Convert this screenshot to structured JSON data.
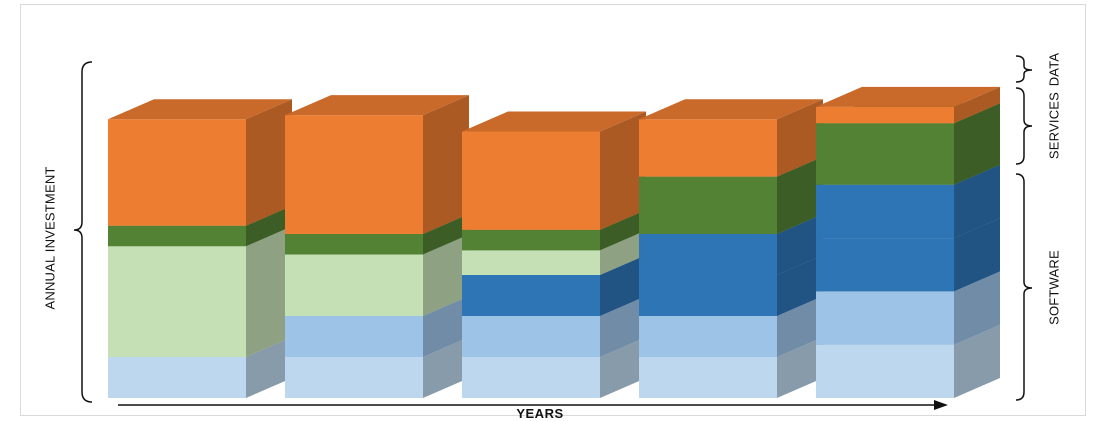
{
  "labels": {
    "y_axis": "ANNUAL INVESTMENT",
    "x_axis": "YEARS",
    "data": "DATA",
    "services": "SERVICES",
    "software": "SOFTWARE"
  },
  "colors": {
    "data": "#ed7d31",
    "services": "#548235",
    "services_legacy": "#c5e0b4",
    "software_dark": "#2e75b6",
    "software_mid": "#9dc3e6",
    "software_light": "#bdd7ee",
    "border": "#d9d9d9",
    "ink": "#111111"
  },
  "columns": [
    {
      "layers": [
        {
          "kind": "software_light",
          "size": 1
        },
        {
          "kind": "services_legacy",
          "size": 2.7
        },
        {
          "kind": "services",
          "size": 0.5
        },
        {
          "kind": "data",
          "size": 2.6
        }
      ]
    },
    {
      "layers": [
        {
          "kind": "software_light",
          "size": 1
        },
        {
          "kind": "software_mid",
          "size": 1
        },
        {
          "kind": "services_legacy",
          "size": 1.5
        },
        {
          "kind": "services",
          "size": 0.5
        },
        {
          "kind": "data",
          "size": 2.9
        }
      ]
    },
    {
      "layers": [
        {
          "kind": "software_light",
          "size": 1
        },
        {
          "kind": "software_mid",
          "size": 1
        },
        {
          "kind": "software_dark",
          "size": 1
        },
        {
          "kind": "services_legacy",
          "size": 0.6
        },
        {
          "kind": "services",
          "size": 0.5
        },
        {
          "kind": "data",
          "size": 2.4
        }
      ]
    },
    {
      "layers": [
        {
          "kind": "software_light",
          "size": 1
        },
        {
          "kind": "software_mid",
          "size": 1
        },
        {
          "kind": "software_dark",
          "size": 1
        },
        {
          "kind": "software_dark",
          "size": 1
        },
        {
          "kind": "services",
          "size": 1.4
        },
        {
          "kind": "data",
          "size": 1.4
        }
      ]
    },
    {
      "layers": [
        {
          "kind": "software_light",
          "size": 1.3
        },
        {
          "kind": "software_mid",
          "size": 1.3
        },
        {
          "kind": "software_dark",
          "size": 1.3
        },
        {
          "kind": "software_dark",
          "size": 1.3
        },
        {
          "kind": "services",
          "size": 1.5
        },
        {
          "kind": "data",
          "size": 0.4
        }
      ]
    }
  ]
}
